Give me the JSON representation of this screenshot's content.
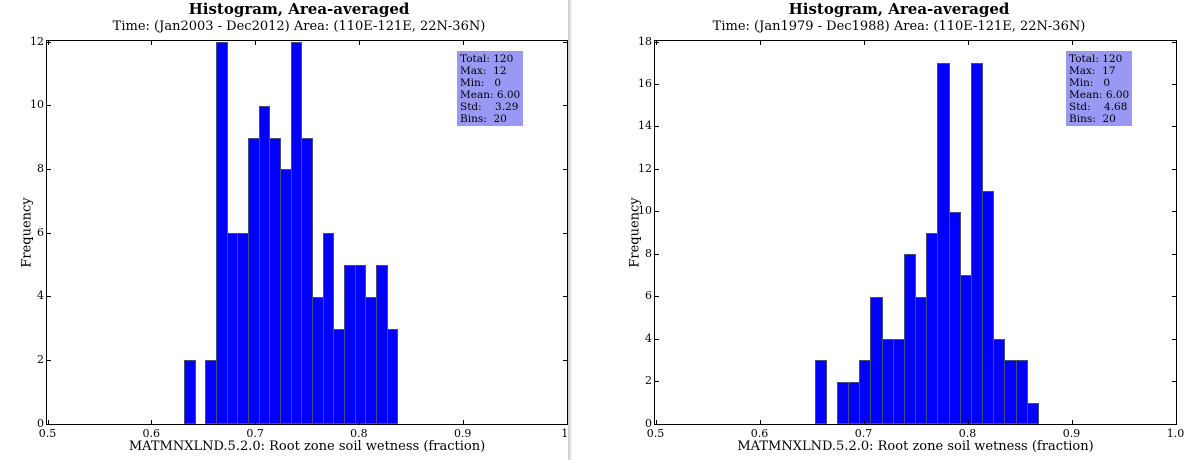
{
  "chart_data": [
    {
      "type": "bar",
      "title": "Histogram, Area-averaged",
      "subtitle": "Time: (Jan2003 - Dec2012)    Area: (110E-121E, 22N-36N)",
      "xlabel": "MATMNXLND.5.2.0: Root zone soil wetness  (fraction)",
      "ylabel": "Frequency",
      "xlim": [
        0.5,
        1.0
      ],
      "ylim": [
        0,
        12
      ],
      "xticks": [
        "0.5",
        "0.6",
        "0.7",
        "0.8",
        "0.9",
        "1."
      ],
      "yticks": [
        "0",
        "2",
        "4",
        "6",
        "8",
        "10",
        "12"
      ],
      "bin_start": 0.632,
      "bin_width": 0.01028,
      "values": [
        2,
        0,
        2,
        12,
        6,
        6,
        9,
        10,
        9,
        8,
        12,
        9,
        4,
        6,
        3,
        5,
        5,
        4,
        5,
        3
      ],
      "stats": {
        "total": "Total: 120",
        "max": "Max:  12",
        "min": "Min:   0",
        "mean": "Mean: 6.00",
        "std": "Std:    3.29",
        "bins": "Bins:  20"
      }
    },
    {
      "type": "bar",
      "title": "Histogram, Area-averaged",
      "subtitle": "Time: (Jan1979 - Dec1988)    Area: (110E-121E, 22N-36N)",
      "xlabel": "MATMNXLND.5.2.0: Root zone soil wetness  (fraction)",
      "ylabel": "Frequency",
      "xlim": [
        0.5,
        1.0
      ],
      "ylim": [
        0,
        18
      ],
      "xticks": [
        "0.5",
        "0.6",
        "0.7",
        "0.8",
        "0.9",
        "1.0"
      ],
      "yticks": [
        "0",
        "2",
        "4",
        "6",
        "8",
        "10",
        "12",
        "14",
        "16",
        "18"
      ],
      "bin_start": 0.6535,
      "bin_width": 0.01073,
      "values": [
        3,
        0,
        2,
        2,
        3,
        6,
        4,
        4,
        8,
        6,
        9,
        17,
        10,
        7,
        17,
        11,
        4,
        3,
        3,
        1
      ],
      "stats": {
        "total": "Total: 120",
        "max": "Max:  17",
        "min": "Min:   0",
        "mean": "Mean: 6.00",
        "std": "Std:    4.68",
        "bins": "Bins:  20"
      }
    }
  ],
  "colors": {
    "bar_fill": "#0000ff",
    "bar_edge": "#4a4a7a",
    "stats_box": "#9999f5"
  }
}
